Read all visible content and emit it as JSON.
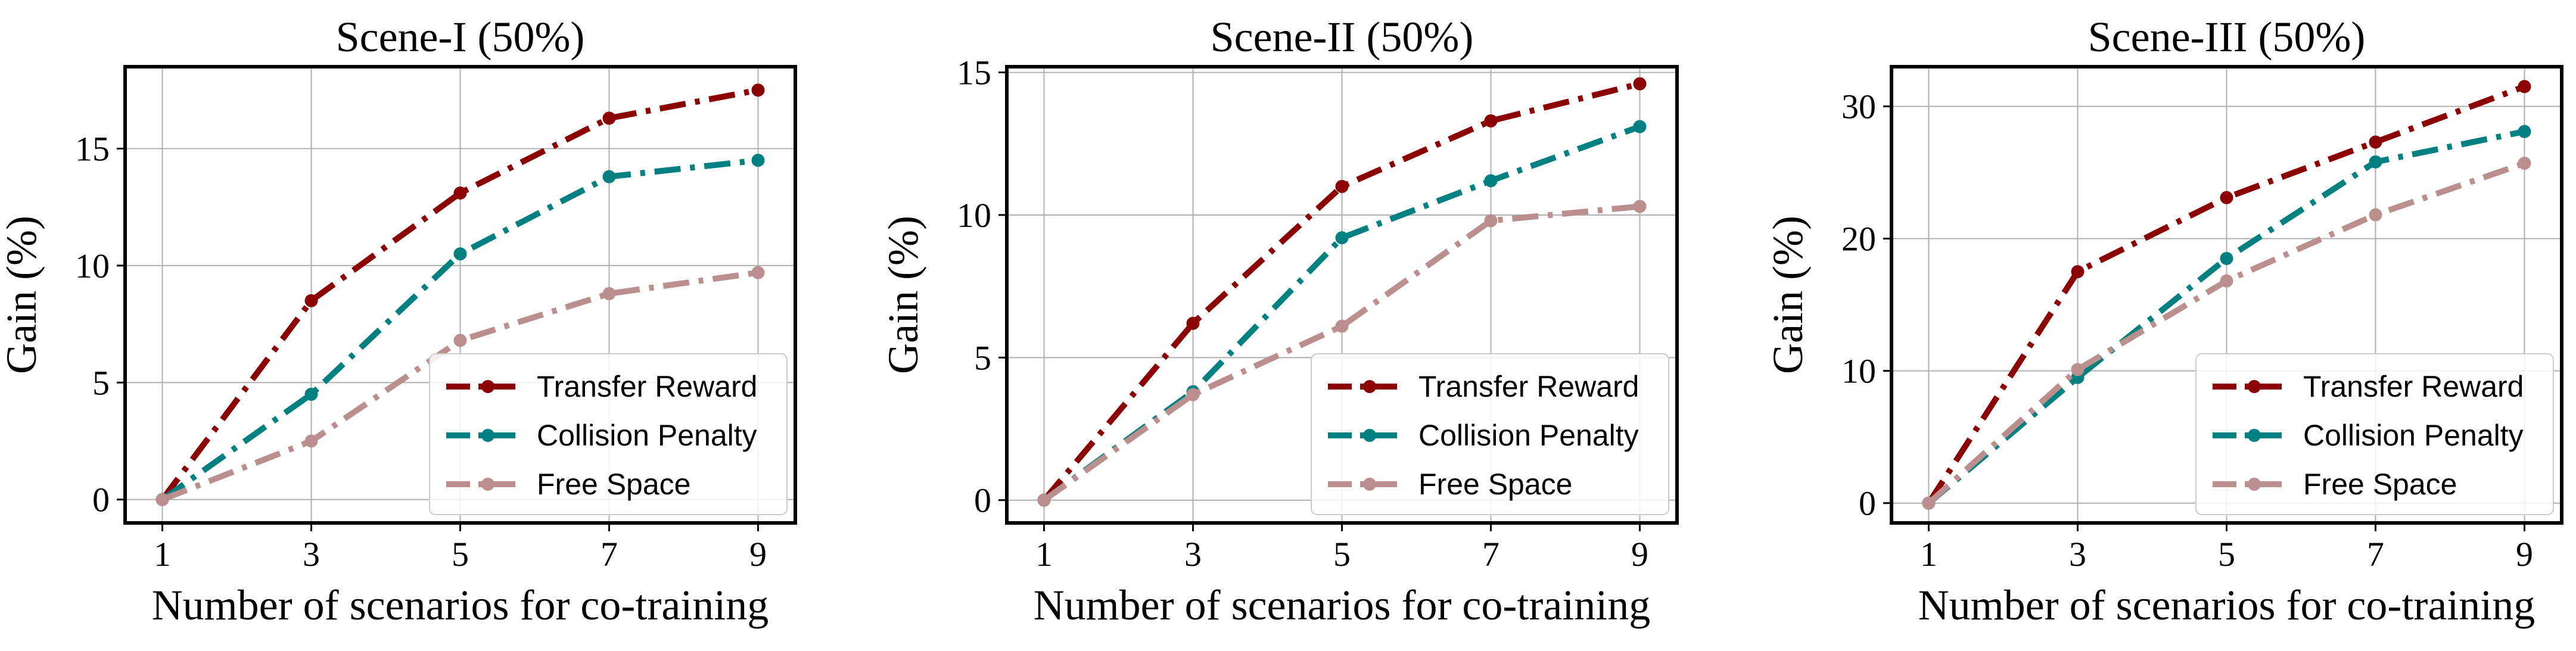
{
  "chart_data": [
    {
      "type": "line",
      "title": "Scene-I (50%)",
      "xlabel": "Number of scenarios for co-training",
      "ylabel": "Gain (%)",
      "x": [
        1,
        3,
        5,
        7,
        9
      ],
      "xticks": [
        "1",
        "3",
        "5",
        "7",
        "9"
      ],
      "yticks": [
        0,
        5,
        10,
        15
      ],
      "ylim": [
        -1,
        18.5
      ],
      "grid": true,
      "legend_position": "lower-right",
      "series": [
        {
          "name": "Transfer Reward",
          "color": "#8b0000",
          "values": [
            0,
            8.5,
            13.1,
            16.3,
            17.5
          ]
        },
        {
          "name": "Collision Penalty",
          "color": "#008080",
          "values": [
            0,
            4.5,
            10.5,
            13.8,
            14.5
          ]
        },
        {
          "name": "Free Space",
          "color": "#bc8f8f",
          "values": [
            0,
            2.5,
            6.8,
            8.8,
            9.7
          ]
        }
      ]
    },
    {
      "type": "line",
      "title": "Scene-II (50%)",
      "xlabel": "Number of scenarios for co-training",
      "ylabel": "Gain (%)",
      "x": [
        1,
        3,
        5,
        7,
        9
      ],
      "xticks": [
        "1",
        "3",
        "5",
        "7",
        "9"
      ],
      "yticks": [
        0,
        5,
        10,
        15
      ],
      "ylim": [
        -0.8,
        15.2
      ],
      "grid": true,
      "legend_position": "lower-right",
      "series": [
        {
          "name": "Transfer Reward",
          "color": "#8b0000",
          "values": [
            0,
            6.2,
            11.0,
            13.3,
            14.6
          ]
        },
        {
          "name": "Collision Penalty",
          "color": "#008080",
          "values": [
            0,
            3.8,
            9.2,
            11.2,
            13.1
          ]
        },
        {
          "name": "Free Space",
          "color": "#bc8f8f",
          "values": [
            0,
            3.7,
            6.1,
            9.8,
            10.3
          ]
        }
      ]
    },
    {
      "type": "line",
      "title": "Scene-III (50%)",
      "xlabel": "Number of scenarios for co-training",
      "ylabel": "Gain (%)",
      "x": [
        1,
        3,
        5,
        7,
        9
      ],
      "xticks": [
        "1",
        "3",
        "5",
        "7",
        "9"
      ],
      "yticks": [
        0,
        10,
        20,
        30
      ],
      "ylim": [
        -1.5,
        33
      ],
      "grid": true,
      "legend_position": "lower-right",
      "series": [
        {
          "name": "Transfer Reward",
          "color": "#8b0000",
          "values": [
            0,
            17.5,
            23.1,
            27.3,
            31.5
          ]
        },
        {
          "name": "Collision Penalty",
          "color": "#008080",
          "values": [
            0,
            9.5,
            18.5,
            25.8,
            28.1
          ]
        },
        {
          "name": "Free Space",
          "color": "#bc8f8f",
          "values": [
            0,
            10.1,
            16.8,
            21.8,
            25.7
          ]
        }
      ]
    }
  ]
}
